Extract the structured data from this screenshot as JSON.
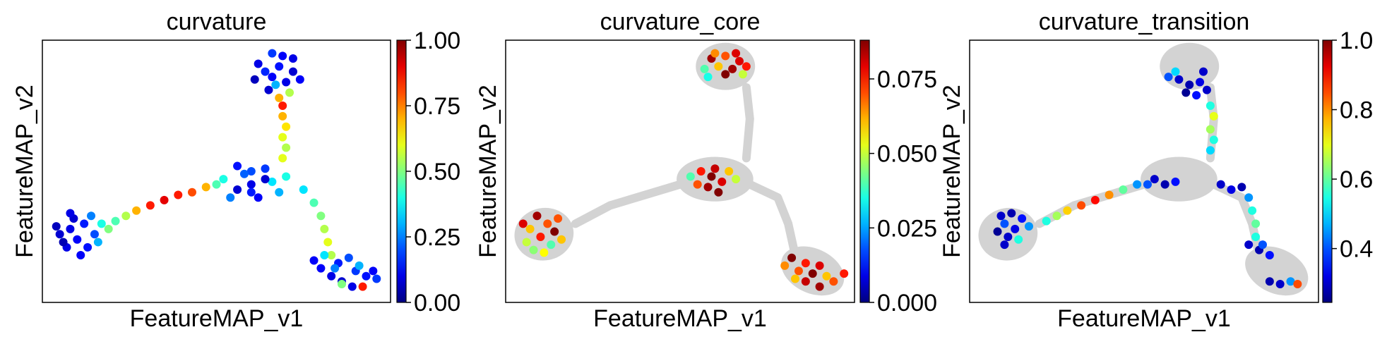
{
  "chart_data": [
    {
      "type": "scatter",
      "title": "curvature",
      "xlabel": "FeatureMAP_v1",
      "ylabel": "FeatureMAP_v2",
      "colorbar": {
        "colormap": "jet",
        "range": [
          0,
          1
        ],
        "ticks": [
          0,
          0.25,
          0.5,
          0.75,
          1
        ],
        "tick_labels": [
          "0.00",
          "0.25",
          "0.50",
          "0.75",
          "1.00"
        ]
      },
      "background_points": false,
      "points": [
        [
          0.68,
          0.1,
          0.14
        ],
        [
          0.66,
          0.14,
          0.12
        ],
        [
          0.7,
          0.16,
          0.1
        ],
        [
          0.64,
          0.12,
          0.16
        ],
        [
          0.72,
          0.12,
          0.08
        ],
        [
          0.67,
          0.17,
          0.3
        ],
        [
          0.69,
          0.06,
          0.12
        ],
        [
          0.71,
          0.2,
          0.55
        ],
        [
          0.62,
          0.09,
          0.1
        ],
        [
          0.74,
          0.15,
          0.12
        ],
        [
          0.68,
          0.22,
          0.7
        ],
        [
          0.65,
          0.19,
          0.08
        ],
        [
          0.69,
          0.25,
          0.85
        ],
        [
          0.61,
          0.15,
          0.06
        ],
        [
          0.66,
          0.05,
          0.18
        ],
        [
          0.72,
          0.07,
          0.1
        ],
        [
          0.69,
          0.29,
          0.7
        ],
        [
          0.7,
          0.33,
          0.65
        ],
        [
          0.69,
          0.37,
          0.6
        ],
        [
          0.7,
          0.41,
          0.55
        ],
        [
          0.69,
          0.45,
          0.6
        ],
        [
          0.6,
          0.5,
          0.2
        ],
        [
          0.56,
          0.48,
          0.14
        ],
        [
          0.64,
          0.49,
          0.18
        ],
        [
          0.52,
          0.53,
          0.4
        ],
        [
          0.6,
          0.55,
          0.1
        ],
        [
          0.66,
          0.54,
          0.35
        ],
        [
          0.56,
          0.57,
          0.08
        ],
        [
          0.62,
          0.6,
          0.12
        ],
        [
          0.68,
          0.58,
          0.3
        ],
        [
          0.58,
          0.51,
          0.22
        ],
        [
          0.64,
          0.53,
          0.08
        ],
        [
          0.54,
          0.6,
          0.25
        ],
        [
          0.7,
          0.52,
          0.4
        ],
        [
          0.5,
          0.55,
          0.45
        ],
        [
          0.6,
          0.58,
          0.15
        ],
        [
          0.47,
          0.56,
          0.7
        ],
        [
          0.43,
          0.58,
          0.8
        ],
        [
          0.39,
          0.59,
          0.85
        ],
        [
          0.35,
          0.61,
          0.9
        ],
        [
          0.31,
          0.63,
          0.85
        ],
        [
          0.27,
          0.65,
          0.7
        ],
        [
          0.24,
          0.67,
          0.55
        ],
        [
          0.21,
          0.69,
          0.45
        ],
        [
          0.75,
          0.57,
          0.35
        ],
        [
          0.78,
          0.62,
          0.45
        ],
        [
          0.8,
          0.67,
          0.5
        ],
        [
          0.81,
          0.72,
          0.55
        ],
        [
          0.82,
          0.77,
          0.6
        ],
        [
          0.83,
          0.82,
          0.55
        ],
        [
          0.12,
          0.7,
          0.15
        ],
        [
          0.08,
          0.72,
          0.1
        ],
        [
          0.05,
          0.74,
          0.08
        ],
        [
          0.15,
          0.74,
          0.2
        ],
        [
          0.1,
          0.76,
          0.12
        ],
        [
          0.17,
          0.7,
          0.4
        ],
        [
          0.07,
          0.79,
          0.1
        ],
        [
          0.13,
          0.79,
          0.14
        ],
        [
          0.04,
          0.71,
          0.06
        ],
        [
          0.09,
          0.68,
          0.08
        ],
        [
          0.16,
          0.77,
          0.3
        ],
        [
          0.11,
          0.82,
          0.12
        ],
        [
          0.06,
          0.77,
          0.05
        ],
        [
          0.14,
          0.67,
          0.25
        ],
        [
          0.19,
          0.72,
          0.5
        ],
        [
          0.08,
          0.66,
          0.1
        ],
        [
          0.85,
          0.85,
          0.15
        ],
        [
          0.8,
          0.87,
          0.12
        ],
        [
          0.9,
          0.88,
          0.18
        ],
        [
          0.83,
          0.9,
          0.1
        ],
        [
          0.88,
          0.83,
          0.2
        ],
        [
          0.93,
          0.9,
          0.14
        ],
        [
          0.78,
          0.84,
          0.12
        ],
        [
          0.86,
          0.92,
          0.08
        ],
        [
          0.91,
          0.86,
          0.3
        ],
        [
          0.96,
          0.91,
          0.18
        ],
        [
          0.81,
          0.82,
          0.35
        ],
        [
          0.89,
          0.94,
          0.1
        ],
        [
          0.86,
          0.93,
          0.5
        ],
        [
          0.92,
          0.94,
          0.85
        ],
        [
          0.95,
          0.88,
          0.12
        ],
        [
          0.84,
          0.87,
          0.25
        ]
      ]
    },
    {
      "type": "scatter",
      "title": "curvature_core",
      "xlabel": "FeatureMAP_v1",
      "ylabel": "FeatureMAP_v2",
      "colorbar": {
        "colormap": "jet",
        "range": [
          0,
          0.088
        ],
        "ticks": [
          0,
          0.025,
          0.05,
          0.075
        ],
        "tick_labels": [
          "0.000",
          "0.025",
          "0.050",
          "0.075"
        ]
      },
      "background_points": true,
      "points": [
        [
          0.59,
          0.07,
          0.085
        ],
        [
          0.63,
          0.06,
          0.07
        ],
        [
          0.67,
          0.08,
          0.08
        ],
        [
          0.61,
          0.1,
          0.06
        ],
        [
          0.65,
          0.11,
          0.085
        ],
        [
          0.69,
          0.1,
          0.075
        ],
        [
          0.57,
          0.11,
          0.04
        ],
        [
          0.63,
          0.13,
          0.088
        ],
        [
          0.6,
          0.05,
          0.065
        ],
        [
          0.68,
          0.13,
          0.05
        ],
        [
          0.58,
          0.14,
          0.035
        ],
        [
          0.66,
          0.05,
          0.08
        ],
        [
          0.56,
          0.5,
          0.075
        ],
        [
          0.59,
          0.52,
          0.088
        ],
        [
          0.62,
          0.54,
          0.08
        ],
        [
          0.58,
          0.56,
          0.085
        ],
        [
          0.64,
          0.5,
          0.06
        ],
        [
          0.55,
          0.55,
          0.07
        ],
        [
          0.61,
          0.58,
          0.088
        ],
        [
          0.66,
          0.53,
          0.05
        ],
        [
          0.53,
          0.52,
          0.04
        ],
        [
          0.6,
          0.49,
          0.082
        ],
        [
          0.09,
          0.67,
          0.085
        ],
        [
          0.12,
          0.7,
          0.07
        ],
        [
          0.07,
          0.72,
          0.06
        ],
        [
          0.14,
          0.73,
          0.088
        ],
        [
          0.1,
          0.75,
          0.075
        ],
        [
          0.06,
          0.77,
          0.05
        ],
        [
          0.13,
          0.78,
          0.04
        ],
        [
          0.16,
          0.76,
          0.06
        ],
        [
          0.08,
          0.8,
          0.045
        ],
        [
          0.11,
          0.81,
          0.055
        ],
        [
          0.05,
          0.7,
          0.08
        ],
        [
          0.15,
          0.68,
          0.07
        ],
        [
          0.82,
          0.83,
          0.088
        ],
        [
          0.86,
          0.85,
          0.075
        ],
        [
          0.9,
          0.86,
          0.08
        ],
        [
          0.84,
          0.88,
          0.07
        ],
        [
          0.88,
          0.89,
          0.088
        ],
        [
          0.92,
          0.9,
          0.06
        ],
        [
          0.8,
          0.86,
          0.065
        ],
        [
          0.86,
          0.92,
          0.082
        ],
        [
          0.94,
          0.92,
          0.07
        ],
        [
          0.9,
          0.94,
          0.085
        ],
        [
          0.97,
          0.89,
          0.075
        ],
        [
          0.83,
          0.91,
          0.06
        ]
      ]
    },
    {
      "type": "scatter",
      "title": "curvature_transition",
      "xlabel": "FeatureMAP_v1",
      "ylabel": "FeatureMAP_v2",
      "colorbar": {
        "colormap": "jet",
        "range": [
          0.245,
          1.0
        ],
        "ticks": [
          0.4,
          0.6,
          0.8,
          1.0
        ],
        "tick_labels": [
          "0.4",
          "0.6",
          "0.8",
          "1.0"
        ]
      },
      "background_points": true,
      "points": [
        [
          0.6,
          0.15,
          0.3
        ],
        [
          0.63,
          0.17,
          0.28
        ],
        [
          0.66,
          0.16,
          0.32
        ],
        [
          0.62,
          0.2,
          0.26
        ],
        [
          0.65,
          0.21,
          0.35
        ],
        [
          0.68,
          0.19,
          0.3
        ],
        [
          0.57,
          0.14,
          0.4
        ],
        [
          0.59,
          0.12,
          0.5
        ],
        [
          0.67,
          0.12,
          0.3
        ],
        [
          0.69,
          0.25,
          0.55
        ],
        [
          0.7,
          0.29,
          0.7
        ],
        [
          0.69,
          0.34,
          0.65
        ],
        [
          0.7,
          0.38,
          0.55
        ],
        [
          0.69,
          0.42,
          0.5
        ],
        [
          0.48,
          0.55,
          0.45
        ],
        [
          0.44,
          0.57,
          0.6
        ],
        [
          0.4,
          0.59,
          0.8
        ],
        [
          0.36,
          0.61,
          0.9
        ],
        [
          0.32,
          0.63,
          0.85
        ],
        [
          0.28,
          0.65,
          0.75
        ],
        [
          0.25,
          0.67,
          0.65
        ],
        [
          0.22,
          0.69,
          0.55
        ],
        [
          0.53,
          0.53,
          0.3
        ],
        [
          0.56,
          0.55,
          0.28
        ],
        [
          0.59,
          0.54,
          0.35
        ],
        [
          0.51,
          0.55,
          0.4
        ],
        [
          0.72,
          0.55,
          0.3
        ],
        [
          0.75,
          0.57,
          0.32
        ],
        [
          0.78,
          0.56,
          0.28
        ],
        [
          0.8,
          0.6,
          0.45
        ],
        [
          0.81,
          0.65,
          0.55
        ],
        [
          0.82,
          0.7,
          0.6
        ],
        [
          0.82,
          0.75,
          0.55
        ],
        [
          0.8,
          0.78,
          0.3
        ],
        [
          0.83,
          0.8,
          0.28
        ],
        [
          0.86,
          0.82,
          0.35
        ],
        [
          0.84,
          0.78,
          0.4
        ],
        [
          0.09,
          0.67,
          0.3
        ],
        [
          0.12,
          0.66,
          0.28
        ],
        [
          0.15,
          0.68,
          0.35
        ],
        [
          0.1,
          0.7,
          0.4
        ],
        [
          0.13,
          0.72,
          0.32
        ],
        [
          0.17,
          0.71,
          0.45
        ],
        [
          0.11,
          0.75,
          0.3
        ],
        [
          0.14,
          0.76,
          0.55
        ],
        [
          0.08,
          0.73,
          0.26
        ],
        [
          0.1,
          0.78,
          0.3
        ],
        [
          0.86,
          0.92,
          0.28
        ],
        [
          0.89,
          0.93,
          0.3
        ],
        [
          0.92,
          0.92,
          0.45
        ],
        [
          0.94,
          0.93,
          0.85
        ]
      ]
    }
  ]
}
